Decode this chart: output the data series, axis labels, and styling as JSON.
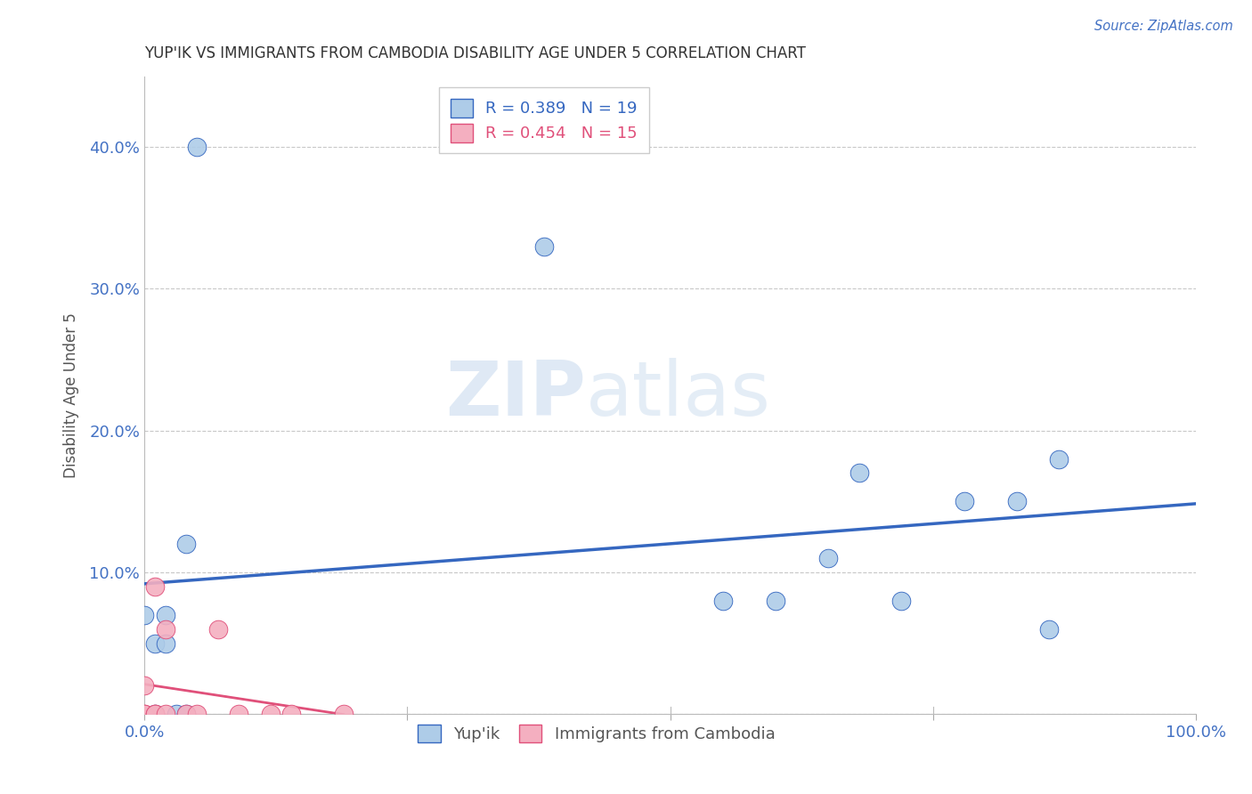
{
  "title": "YUP'IK VS IMMIGRANTS FROM CAMBODIA DISABILITY AGE UNDER 5 CORRELATION CHART",
  "source": "Source: ZipAtlas.com",
  "ylabel": "Disability Age Under 5",
  "xlim": [
    0.0,
    1.0
  ],
  "ylim": [
    0.0,
    0.45
  ],
  "yticks": [
    0.0,
    0.1,
    0.2,
    0.3,
    0.4
  ],
  "xticks": [
    0.0,
    0.25,
    0.5,
    0.75,
    1.0
  ],
  "xtick_labels": [
    "0.0%",
    "",
    "",
    "",
    "100.0%"
  ],
  "ytick_labels": [
    "",
    "10.0%",
    "20.0%",
    "30.0%",
    "40.0%"
  ],
  "yupik_x": [
    0.0,
    0.01,
    0.01,
    0.02,
    0.02,
    0.03,
    0.04,
    0.04,
    0.05,
    0.38,
    0.55,
    0.6,
    0.65,
    0.68,
    0.72,
    0.78,
    0.83,
    0.86,
    0.87
  ],
  "yupik_y": [
    0.07,
    0.0,
    0.05,
    0.05,
    0.07,
    0.0,
    0.0,
    0.12,
    0.4,
    0.33,
    0.08,
    0.08,
    0.11,
    0.17,
    0.08,
    0.15,
    0.15,
    0.06,
    0.18
  ],
  "cambodia_x": [
    0.0,
    0.0,
    0.0,
    0.01,
    0.01,
    0.01,
    0.02,
    0.02,
    0.04,
    0.05,
    0.07,
    0.09,
    0.12,
    0.14,
    0.19
  ],
  "cambodia_y": [
    0.0,
    0.0,
    0.02,
    0.0,
    0.0,
    0.09,
    0.0,
    0.06,
    0.0,
    0.0,
    0.06,
    0.0,
    0.0,
    0.0,
    0.0
  ],
  "yupik_R": 0.389,
  "yupik_N": 19,
  "cambodia_R": 0.454,
  "cambodia_N": 15,
  "yupik_color": "#aecce8",
  "cambodia_color": "#f4afc0",
  "yupik_line_color": "#3567c0",
  "cambodia_line_color": "#e0507a",
  "legend_label_yupik": "Yup'ik",
  "legend_label_cambodia": "Immigrants from Cambodia",
  "watermark_zip": "ZIP",
  "watermark_atlas": "atlas",
  "background_color": "#ffffff",
  "grid_color": "#c8c8c8",
  "title_color": "#333333",
  "label_color": "#555555",
  "tick_color": "#4472c4",
  "source_color": "#4472c4"
}
